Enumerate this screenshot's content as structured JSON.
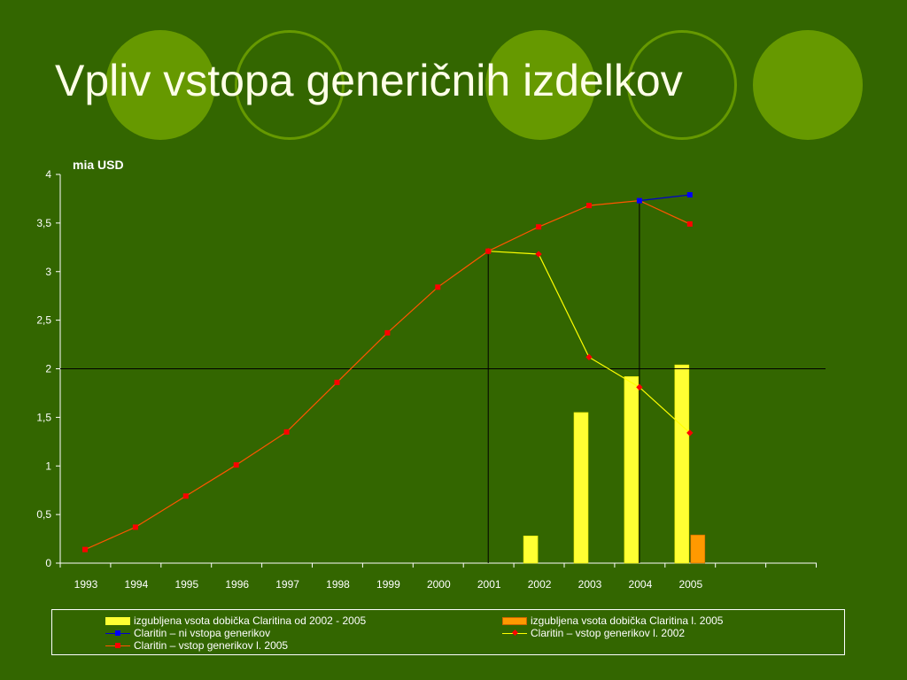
{
  "title": "Vpliv vstopa generičnih izdelkov",
  "colors": {
    "background": "#336600",
    "decoration": "#669900",
    "bar_2002_2005": "#ffff33",
    "bar_2005": "#ff9900",
    "line_no_generics": "#0000cc",
    "line_generics_2002": "#ffff00",
    "line_generics_2005": "#ff5500",
    "marker_red": "#ff0000"
  },
  "chart_data": {
    "type": "line",
    "ylabel": "mia USD",
    "ylim": [
      0,
      4
    ],
    "yticks": [
      "0",
      "0,5",
      "1",
      "1,5",
      "2",
      "2,5",
      "3",
      "3,5",
      "4"
    ],
    "categories": [
      "1993",
      "1994",
      "1995",
      "1996",
      "1997",
      "1998",
      "1999",
      "2000",
      "2001",
      "2002",
      "2003",
      "2004",
      "2005"
    ],
    "reference_lines": {
      "horizontal_y": 2.0,
      "vertical_at": [
        "2001",
        "2004"
      ]
    },
    "bars": [
      {
        "name": "izgubljena vsota dobička Claritina od 2002 - 2005",
        "color": "#ffff33",
        "points": [
          {
            "x": "2002",
            "y": 0.28
          },
          {
            "x": "2003",
            "y": 1.55
          },
          {
            "x": "2004",
            "y": 1.92
          },
          {
            "x": "2005",
            "y": 2.04
          }
        ]
      },
      {
        "name": "izgubljena vsota dobička Claritina l. 2005",
        "color": "#ff9900",
        "points": [
          {
            "x": "2005",
            "y": 0.29
          }
        ]
      }
    ],
    "series": [
      {
        "name": "Claritin – vstop generikov l. 2005",
        "color": "#ff5500",
        "marker": "#ff0000",
        "points": [
          {
            "x": "1993",
            "y": 0.14
          },
          {
            "x": "1994",
            "y": 0.37
          },
          {
            "x": "1995",
            "y": 0.69
          },
          {
            "x": "1996",
            "y": 1.01
          },
          {
            "x": "1997",
            "y": 1.35
          },
          {
            "x": "1998",
            "y": 1.86
          },
          {
            "x": "1999",
            "y": 2.37
          },
          {
            "x": "2000",
            "y": 2.84
          },
          {
            "x": "2001",
            "y": 3.21
          },
          {
            "x": "2002",
            "y": 3.46
          },
          {
            "x": "2003",
            "y": 3.68
          },
          {
            "x": "2004",
            "y": 3.73
          },
          {
            "x": "2005",
            "y": 3.49
          }
        ]
      },
      {
        "name": "Claritin – ni vstopa generikov",
        "color": "#0000cc",
        "marker": "#0000ff",
        "points": [
          {
            "x": "2004",
            "y": 3.73
          },
          {
            "x": "2005",
            "y": 3.79
          }
        ]
      },
      {
        "name": "Claritin – vstop generikov l. 2002",
        "color": "#ffff00",
        "marker": "#ff0000",
        "points": [
          {
            "x": "2001",
            "y": 3.21
          },
          {
            "x": "2002",
            "y": 3.18
          },
          {
            "x": "2003",
            "y": 2.12
          },
          {
            "x": "2004",
            "y": 1.81
          },
          {
            "x": "2005",
            "y": 1.34
          }
        ]
      }
    ]
  },
  "legend": [
    {
      "label": "izgubljena vsota dobička Claritina od 2002 - 2005",
      "kind": "bar",
      "color": "#ffff33"
    },
    {
      "label": "izgubljena vsota dobička Claritina l. 2005",
      "kind": "bar",
      "color": "#ff9900"
    },
    {
      "label": "Claritin – ni vstopa generikov",
      "kind": "line",
      "color": "#0000cc",
      "marker": "#0000ff"
    },
    {
      "label": "Claritin – vstop generikov l. 2002",
      "kind": "line",
      "color": "#ffff00",
      "marker": "#ff0000"
    },
    {
      "label": "Claritin – vstop generikov l. 2005",
      "kind": "line",
      "color": "#ff5500",
      "marker": "#ff0000"
    }
  ]
}
